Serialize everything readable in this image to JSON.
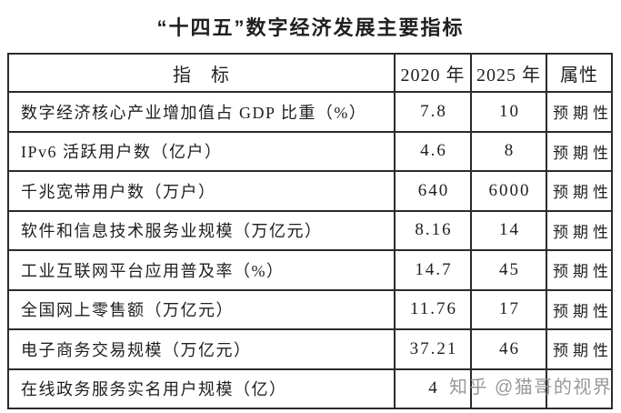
{
  "title": "“十四五”数字经济发展主要指标",
  "table": {
    "headers": [
      "指　标",
      "2020 年",
      "2025 年",
      "属性"
    ],
    "rows": [
      {
        "indicator": "数字经济核心产业增加值占 GDP 比重（%）",
        "y2020": "7.8",
        "y2025": "10",
        "attribute": "预期性"
      },
      {
        "indicator": "IPv6 活跃用户数（亿户）",
        "y2020": "4.6",
        "y2025": "8",
        "attribute": "预期性"
      },
      {
        "indicator": "千兆宽带用户数（万户）",
        "y2020": "640",
        "y2025": "6000",
        "attribute": "预期性"
      },
      {
        "indicator": "软件和信息技术服务业规模（万亿元）",
        "y2020": "8.16",
        "y2025": "14",
        "attribute": "预期性"
      },
      {
        "indicator": "工业互联网平台应用普及率（%）",
        "y2020": "14.7",
        "y2025": "45",
        "attribute": "预期性"
      },
      {
        "indicator": "全国网上零售额（万亿元）",
        "y2020": "11.76",
        "y2025": "17",
        "attribute": "预期性"
      },
      {
        "indicator": "电子商务交易规模（万亿元）",
        "y2020": "37.21",
        "y2025": "46",
        "attribute": "预期性"
      },
      {
        "indicator": "在线政务服务实名用户规模（亿）",
        "y2020": "4",
        "y2025": "",
        "attribute": ""
      }
    ]
  },
  "watermark": {
    "text": "知乎 @猫哥的视界",
    "color": "#8f8f8f"
  },
  "colors": {
    "border": "#2b2b2b",
    "text": "#1f1f1f",
    "background": "#ffffff"
  }
}
